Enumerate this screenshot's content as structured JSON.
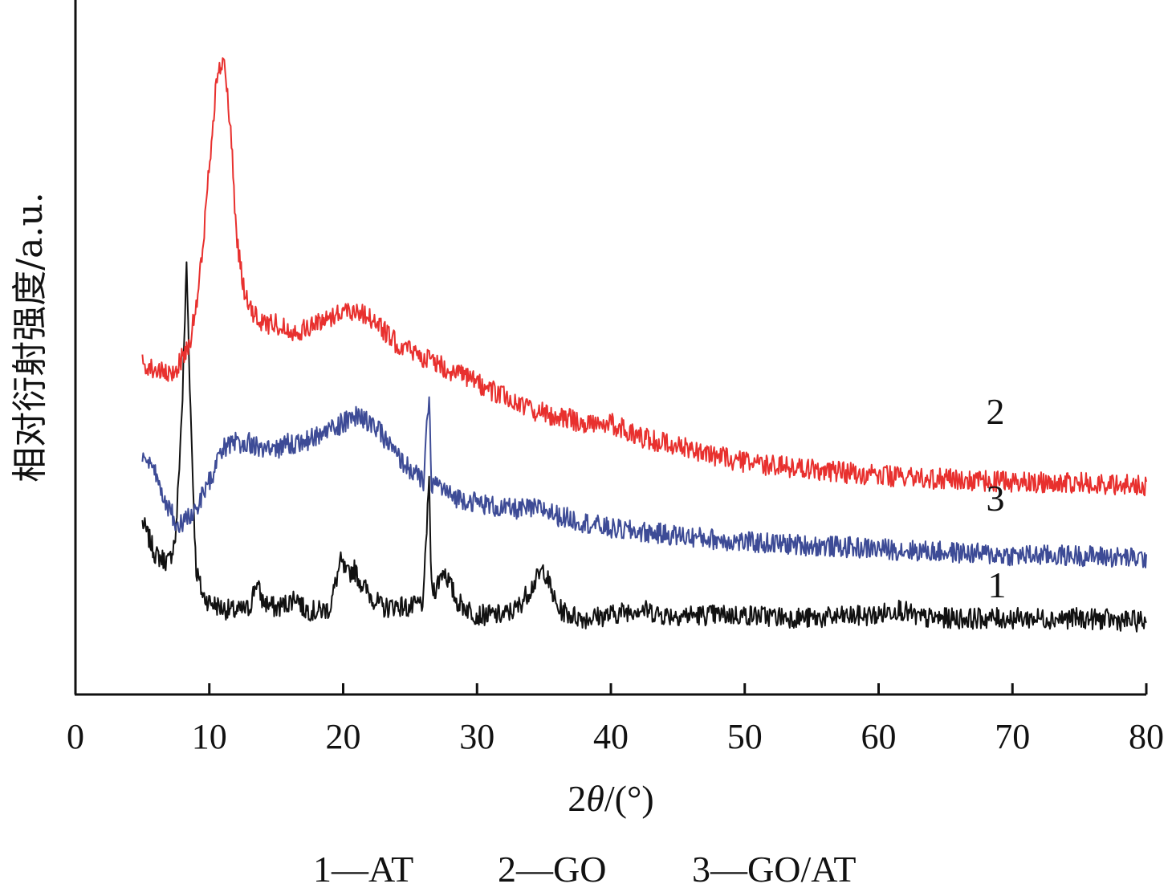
{
  "chart_data": {
    "type": "line",
    "xlabel_num": "2",
    "xlabel_sym": "θ",
    "xlabel_unit": "/(°)",
    "ylabel": "相对衍射强度/a.u.",
    "xlim": [
      0,
      80
    ],
    "ylim": [
      0,
      100
    ],
    "xticks": [
      "0",
      "10",
      "20",
      "30",
      "40",
      "50",
      "60",
      "70",
      "80"
    ],
    "series": [
      {
        "name": "1",
        "color": "#111111",
        "x": [
          5,
          6,
          7,
          7.5,
          8,
          8.3,
          8.6,
          9,
          9.5,
          10,
          11,
          12,
          13,
          13.5,
          14,
          15,
          16,
          16.5,
          17,
          18,
          19,
          19.8,
          20.3,
          20.8,
          21.3,
          22,
          23,
          24,
          25,
          26,
          26.4,
          26.6,
          26.9,
          27.5,
          28.5,
          30,
          32,
          33,
          34,
          35,
          36,
          37,
          38,
          40,
          42,
          44,
          50,
          55,
          60,
          61.5,
          63,
          65,
          70,
          75,
          80
        ],
        "y": [
          26,
          21,
          20,
          24,
          45,
          65,
          43,
          19,
          15,
          14,
          13,
          12.5,
          13,
          17,
          14,
          13,
          14,
          15,
          13,
          12.5,
          13,
          20,
          18,
          19,
          17,
          15,
          13,
          13.5,
          13,
          14,
          33,
          16,
          16,
          19,
          14,
          12,
          12,
          13,
          16,
          19,
          13,
          12,
          11.5,
          12,
          13,
          12,
          12,
          11.5,
          12,
          13,
          11.5,
          11.5,
          11.5,
          11.5,
          11
        ]
      },
      {
        "name": "2",
        "color": "#e8302e",
        "x": [
          5,
          6,
          7,
          7.5,
          8,
          8.5,
          9,
          9.5,
          10,
          10.5,
          11,
          11.3,
          11.7,
          12,
          12.5,
          13,
          13.5,
          14,
          15,
          16,
          17,
          18,
          19,
          20,
          21,
          22,
          23,
          24,
          25,
          26,
          28,
          30,
          32,
          34,
          36,
          38,
          40,
          42,
          44,
          46,
          48,
          50,
          55,
          60,
          65,
          70,
          75,
          80
        ],
        "y": [
          50,
          49,
          48,
          49,
          51,
          53,
          58,
          67,
          80,
          92,
          96,
          92,
          82,
          70,
          62,
          58,
          57,
          56,
          56,
          55,
          55,
          56,
          57,
          58,
          58,
          57,
          55,
          53,
          52,
          51,
          49,
          47,
          45,
          43,
          42,
          41,
          41,
          39,
          38,
          37,
          36,
          35,
          34,
          33,
          32.5,
          32,
          32,
          31.5
        ]
      },
      {
        "name": "3",
        "color": "#3d4b96",
        "x": [
          5,
          6,
          7,
          7.5,
          8,
          9,
          10,
          11,
          12,
          13,
          14,
          15,
          16,
          17,
          18,
          19,
          20,
          21,
          22,
          23,
          24,
          25,
          26,
          26.4,
          26.6,
          26.9,
          27.5,
          28,
          30,
          32,
          34,
          35,
          36,
          38,
          40,
          45,
          50,
          55,
          60,
          65,
          70,
          75,
          80
        ],
        "y": [
          36,
          33,
          28,
          26,
          26,
          28,
          32,
          37,
          38,
          38,
          37,
          37,
          38,
          38,
          39,
          40,
          41,
          42,
          41,
          39,
          36,
          34,
          32,
          45,
          32,
          32,
          31,
          30,
          29,
          28,
          28,
          28,
          27,
          26,
          25,
          24,
          23,
          22.5,
          22,
          21.5,
          21,
          21,
          20.5
        ]
      }
    ],
    "curve_labels": [
      "2",
      "3",
      "1"
    ],
    "legend": [
      "1—AT",
      "2—GO",
      "3—GO/AT"
    ],
    "grid": false
  }
}
